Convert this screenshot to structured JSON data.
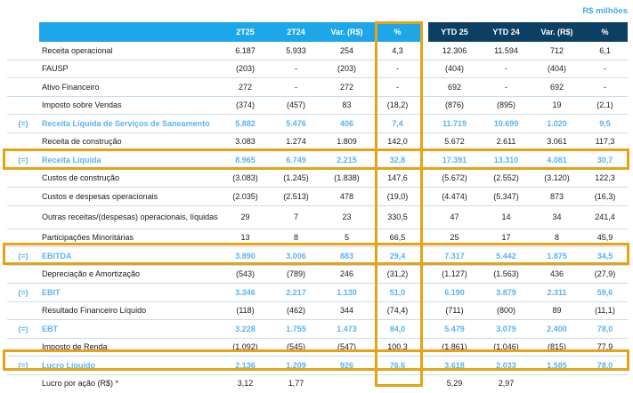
{
  "units": "R$ milhões",
  "columns": [
    "2T25",
    "2T24",
    "Var. (R$)",
    "%",
    "YTD 25",
    "YTD 24",
    "Var. (R$)",
    "%"
  ],
  "rows": [
    {
      "prefix": "",
      "label": "Receita operacional",
      "values": [
        "6.187",
        "5.933",
        "254",
        "4,3",
        "12.306",
        "11.594",
        "712",
        "6,1"
      ]
    },
    {
      "prefix": "",
      "label": "FAUSP",
      "values": [
        "(203)",
        "-",
        "(203)",
        "-",
        "(404)",
        "-",
        "(404)",
        "-"
      ]
    },
    {
      "prefix": "",
      "label": "Ativo Financeiro",
      "values": [
        "272",
        "-",
        "272",
        "-",
        "692",
        "-",
        "692",
        "-"
      ]
    },
    {
      "prefix": "",
      "label": "Imposto sobre Vendas",
      "values": [
        "(374)",
        "(457)",
        "83",
        "(18,2)",
        "(876)",
        "(895)",
        "19",
        "(2,1)"
      ]
    },
    {
      "prefix": "(=)",
      "label": "Receita Líquida de Serviços de Saneamento",
      "values": [
        "5.882",
        "5.476",
        "406",
        "7,4",
        "11.719",
        "10.699",
        "1.020",
        "9,5"
      ]
    },
    {
      "prefix": "",
      "label": "Receita de construção",
      "values": [
        "3.083",
        "1.274",
        "1.809",
        "142,0",
        "5.672",
        "2.611",
        "3.061",
        "117,3"
      ]
    },
    {
      "prefix": "(=)",
      "label": "Receita Líquida",
      "values": [
        "8.965",
        "6.749",
        "2.215",
        "32,8",
        "17.391",
        "13.310",
        "4.081",
        "30,7"
      ]
    },
    {
      "prefix": "",
      "label": "Custos de construção",
      "values": [
        "(3.083)",
        "(1.245)",
        "(1.838)",
        "147,6",
        "(5.672)",
        "(2.552)",
        "(3.120)",
        "122,3"
      ]
    },
    {
      "prefix": "",
      "label": "Custos e despesas operacionais",
      "values": [
        "(2.035)",
        "(2.513)",
        "478",
        "(19,0)",
        "(4.474)",
        "(5.347)",
        "873",
        "(16,3)"
      ]
    },
    {
      "prefix": "",
      "label": "Outras receitas/(despesas) operacionais, líquidas",
      "values": [
        "29",
        "7",
        "23",
        "330,5",
        "47",
        "14",
        "34",
        "241,4"
      ]
    },
    {
      "prefix": "",
      "label": "Participações Minoritárias",
      "values": [
        "13",
        "8",
        "5",
        "66,5",
        "25",
        "17",
        "8",
        "45,9"
      ]
    },
    {
      "prefix": "(=)",
      "label": "EBITDA",
      "values": [
        "3.890",
        "3.006",
        "883",
        "29,4",
        "7.317",
        "5.442",
        "1.875",
        "34,5"
      ]
    },
    {
      "prefix": "",
      "label": "Depreciação e Amortização",
      "values": [
        "(543)",
        "(789)",
        "246",
        "(31,2)",
        "(1.127)",
        "(1.563)",
        "436",
        "(27,9)"
      ]
    },
    {
      "prefix": "(=)",
      "label": "EBIT",
      "values": [
        "3.346",
        "2.217",
        "1.130",
        "51,0",
        "6.190",
        "3.879",
        "2.311",
        "59,6"
      ]
    },
    {
      "prefix": "",
      "label": "Resultado Financeiro Líquido",
      "values": [
        "(118)",
        "(462)",
        "344",
        "(74,4)",
        "(711)",
        "(800)",
        "89",
        "(11,1)"
      ]
    },
    {
      "prefix": "(=)",
      "label": "EBT",
      "values": [
        "3.228",
        "1.755",
        "1.473",
        "84,0",
        "5.479",
        "3.079",
        "2.400",
        "78,0"
      ]
    },
    {
      "prefix": "",
      "label": "Imposto de Renda",
      "values": [
        "(1.092)",
        "(545)",
        "(547)",
        "100,3",
        "(1.861)",
        "(1.046)",
        "(815)",
        "77,9"
      ]
    },
    {
      "prefix": "(=)",
      "label": "Lucro Líquido",
      "values": [
        "2.136",
        "1.209",
        "926",
        "76,6",
        "3.618",
        "2.033",
        "1.585",
        "78,0"
      ]
    },
    {
      "prefix": "",
      "label": "Lucro por ação (R$) *",
      "values": [
        "3,12",
        "1,77",
        "",
        "",
        "5,29",
        "2,97",
        "",
        ""
      ]
    }
  ],
  "colors": {
    "header_light": "#1da7e8",
    "header_dark": "#0d3f63",
    "highlight": "#e6a316",
    "accent_text": "#5ab4ef"
  }
}
